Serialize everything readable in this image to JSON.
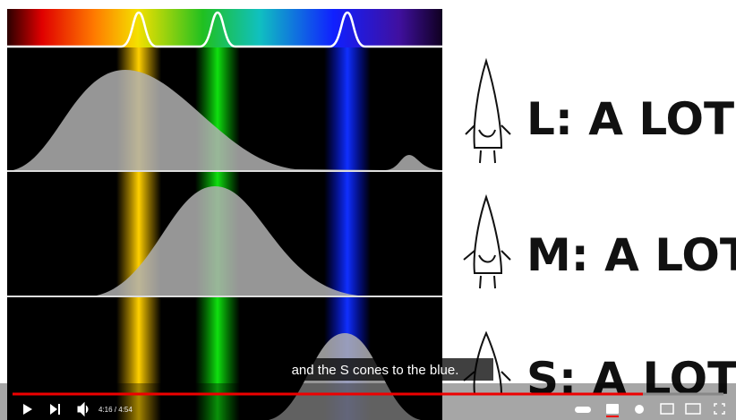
{
  "video": {
    "caption": "and the S cones to the blue.",
    "time": "4:16 / 4:54"
  },
  "panels": [
    {
      "label": "L: A LOT!"
    },
    {
      "label": "M: A LOT!"
    },
    {
      "label": "S: A LOT!"
    }
  ]
}
